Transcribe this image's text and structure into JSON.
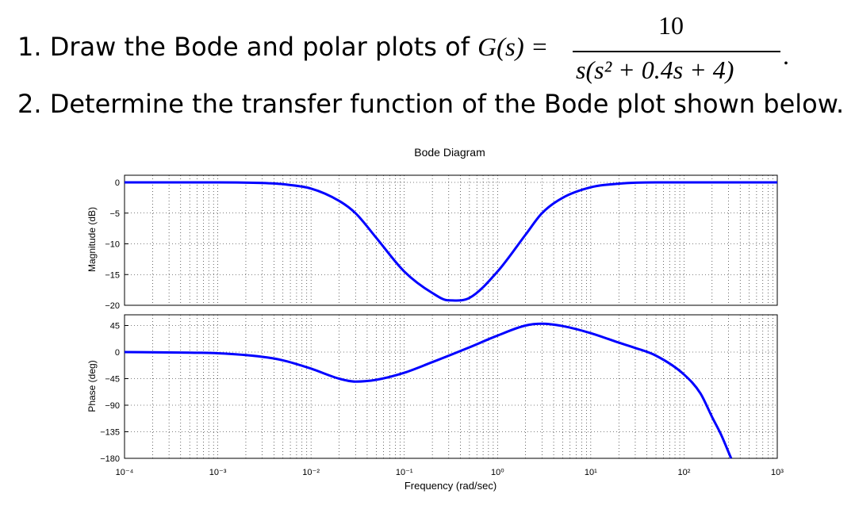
{
  "problems": [
    {
      "number": "1.",
      "text": "Draw the Bode and polar plots of",
      "lhs": "G(s) =",
      "numerator": "10",
      "denominator": "s(s² + 0.4s + 4)",
      "end": "."
    },
    {
      "number": "2.",
      "text": "Determine the transfer function of the Bode plot shown below."
    }
  ],
  "chart_data": [
    {
      "type": "line",
      "title": "Bode Diagram",
      "ylabel": "Magnitude (dB)",
      "xscale": "log",
      "xlim": [
        0.0001,
        1000
      ],
      "ylim": [
        -20,
        2
      ],
      "yticks": [
        0,
        -5,
        -10,
        -15,
        -20
      ],
      "grid": true,
      "color": "#0000ff",
      "x": [
        0.0001,
        0.001,
        0.003,
        0.005,
        0.01,
        0.02,
        0.03,
        0.05,
        0.1,
        0.2,
        0.3,
        0.5,
        1,
        2,
        3,
        5,
        10,
        20,
        50,
        100,
        1000
      ],
      "y": [
        0,
        0,
        -0.1,
        -0.3,
        -1,
        -3,
        -5,
        -9,
        -14.5,
        -18,
        -19.2,
        -18.8,
        -14.5,
        -8.5,
        -5,
        -2.5,
        -0.8,
        -0.2,
        0,
        0,
        0
      ]
    },
    {
      "type": "line",
      "ylabel": "Phase (deg)",
      "xlabel": "Frequency  (rad/sec)",
      "xscale": "log",
      "xlim": [
        0.0001,
        1000
      ],
      "ylim": [
        -180,
        50
      ],
      "yticks": [
        45,
        0,
        -45,
        -90,
        -135,
        -180
      ],
      "xticks": [
        "10⁻⁴",
        "10⁻³",
        "10⁻²",
        "10⁻¹",
        "10⁰",
        "10¹",
        "10²",
        "10³"
      ],
      "grid": true,
      "color": "#0000ff",
      "x": [
        0.0001,
        0.0005,
        0.001,
        0.003,
        0.005,
        0.01,
        0.02,
        0.03,
        0.05,
        0.1,
        0.2,
        0.5,
        1,
        2,
        3,
        5,
        10,
        20,
        30,
        50,
        100,
        150,
        200,
        250,
        320
      ],
      "y": [
        0,
        -1,
        -2,
        -8,
        -14,
        -28,
        -45,
        -50,
        -47,
        -35,
        -17,
        8,
        28,
        45,
        48,
        44,
        32,
        16,
        7,
        -6,
        -38,
        -70,
        -110,
        -140,
        -180
      ]
    }
  ]
}
